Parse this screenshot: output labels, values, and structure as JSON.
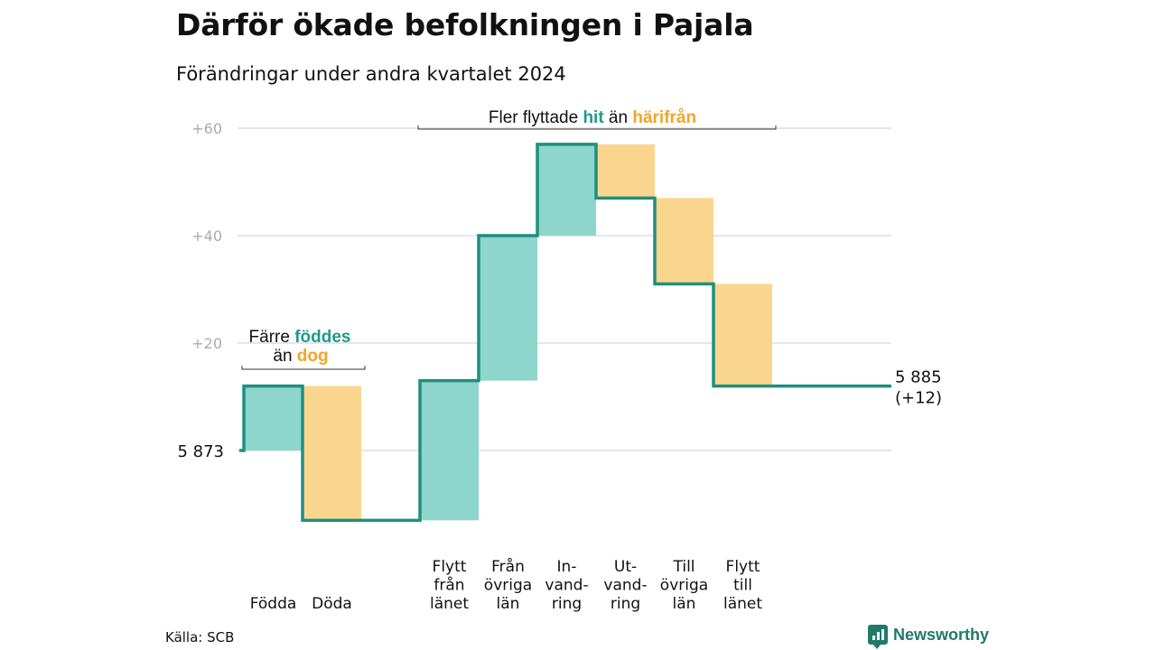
{
  "title": "Därför ökade befolkningen i Pajala",
  "subtitle": "Förändringar under andra kvartalet 2024",
  "source": "Källa: SCB",
  "brand": "Newsworthy",
  "colors": {
    "increase": "#8ed5cb",
    "decrease": "#fad58d",
    "line": "#1f8f7f",
    "accent_in": "#1f9a8a",
    "accent_out": "#f2a42c",
    "grid": "#dddddd",
    "tick": "#aaaaaa"
  },
  "annotations": {
    "births_deaths": {
      "prefix": "Färre",
      "hi1": "föddes",
      "mid": "än",
      "hi2": "dog"
    },
    "migration": {
      "prefix": "Fler flyttade",
      "hi1": "hit",
      "mid": "än",
      "hi2": "härifrån"
    }
  },
  "chart_data": {
    "type": "waterfall",
    "title": "Därför ökade befolkningen i Pajala",
    "subtitle": "Förändringar under andra kvartalet 2024",
    "start": {
      "label": "5 873",
      "value": 0
    },
    "end": {
      "label": "5 885",
      "label2": "(+12)",
      "value": 12
    },
    "y_ticks": [
      {
        "value": 20,
        "label": "+20"
      },
      {
        "value": 40,
        "label": "+40"
      },
      {
        "value": 60,
        "label": "+60"
      }
    ],
    "ylim": [
      -13,
      62
    ],
    "steps": [
      {
        "label": [
          "Födda"
        ],
        "change": 12,
        "type": "increase"
      },
      {
        "label": [
          "Döda"
        ],
        "change": -25,
        "type": "decrease"
      },
      {
        "label": [],
        "change": 0,
        "type": "gap"
      },
      {
        "label": [
          "Flytt",
          "från",
          "länet"
        ],
        "change": 26,
        "type": "increase"
      },
      {
        "label": [
          "Från",
          "övriga",
          "län"
        ],
        "change": 27,
        "type": "increase"
      },
      {
        "label": [
          "In-",
          "vand-",
          "ring"
        ],
        "change": 17,
        "type": "increase"
      },
      {
        "label": [
          "Ut-",
          "vand-",
          "ring"
        ],
        "change": -10,
        "type": "decrease"
      },
      {
        "label": [
          "Till",
          "övriga",
          "län"
        ],
        "change": -16,
        "type": "decrease"
      },
      {
        "label": [
          "Flytt",
          "till",
          "länet"
        ],
        "change": -19,
        "type": "decrease"
      }
    ],
    "grid": true,
    "legend": "none"
  }
}
